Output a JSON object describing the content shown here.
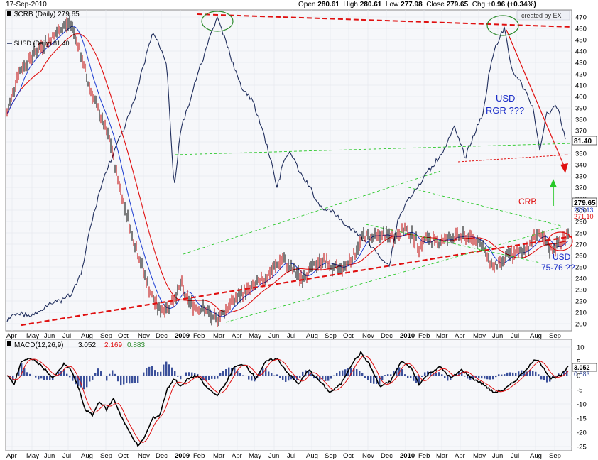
{
  "header": {
    "date": "17-Sep-2010",
    "open_label": "Open",
    "open": "280.61",
    "high_label": "High",
    "high": "280.61",
    "low_label": "Low",
    "low": "277.98",
    "close_label": "Close",
    "close": "279.65",
    "chg_label": "Chg",
    "chg": "+0.96 (+0.34%)",
    "credit": "created by EX"
  },
  "price_panel": {
    "legend_main": "$CRB (Daily) 279.65",
    "legend_overlay": "$USD (Daily) 81.40",
    "y_ticks": [
      200,
      210,
      220,
      230,
      240,
      250,
      260,
      270,
      280,
      290,
      300,
      310,
      320,
      330,
      340,
      350,
      360,
      370,
      380,
      390,
      400,
      410,
      420,
      430,
      440,
      450,
      460,
      470
    ],
    "price_tags": {
      "usd": "81.40",
      "crb": "279.65",
      "ma1": "275.13",
      "ma2": "271.10"
    },
    "annotations": {
      "usd_rgr": [
        "USD",
        "RGR ???"
      ],
      "crb": "CRB",
      "usd_7576": [
        "USD",
        "75-76 ??"
      ]
    }
  },
  "macd_panel": {
    "legend_title": "MACD(12,26,9)",
    "macd": "3.052",
    "signal": "2.169",
    "hist": "0.883",
    "y_ticks": [
      "10",
      "5",
      "0",
      "-5",
      "-10",
      "-15",
      "-20",
      "-25"
    ],
    "tags": {
      "macd": "3.052",
      "hist": "0.883"
    }
  },
  "x_axis": [
    "Apr",
    "May",
    "Jun",
    "Jul",
    "Aug",
    "Sep",
    "Oct",
    "Nov",
    "Dec",
    "2009",
    "Feb",
    "Mar",
    "Apr",
    "May",
    "Jun",
    "Jul",
    "Aug",
    "Sep",
    "Oct",
    "Nov",
    "Dec",
    "2010",
    "Feb",
    "Mar",
    "Apr",
    "May",
    "Jun",
    "Jul",
    "Aug",
    "Sep"
  ],
  "colors": {
    "crb": "#000000",
    "usd": "#1f2d5c",
    "ma_fast": "#1a3bd1",
    "ma_slow": "#e01010",
    "trend": "#e01010",
    "channel": "#28c828",
    "hist": "#3a4f9a",
    "annotation_usd": "#1a2dc8",
    "annotation_crb": "#e01010"
  },
  "chart_data": [
    {
      "type": "line",
      "title": "$CRB (Daily) 279.65",
      "series_names": [
        "$CRB (Daily)",
        "$USD (Daily)"
      ],
      "x": [
        "Apr 2008",
        "Jul 2008",
        "Oct 2008",
        "Dec 2008",
        "Mar 2009",
        "Jun 2009",
        "Oct 2009",
        "Jan 2010",
        "Jun 2010",
        "Sep 2010"
      ],
      "crb": [
        385,
        465,
        330,
        215,
        205,
        265,
        280,
        290,
        260,
        280
      ],
      "usd_overlay_visual": "USD plotted on separate hidden scale",
      "ylim": [
        195,
        475
      ]
    },
    {
      "type": "line",
      "title": "MACD(12,26,9)",
      "macd_last": 3.052,
      "signal_last": 2.169,
      "hist_last": 0.883,
      "ylim": [
        -27,
        12
      ]
    }
  ]
}
